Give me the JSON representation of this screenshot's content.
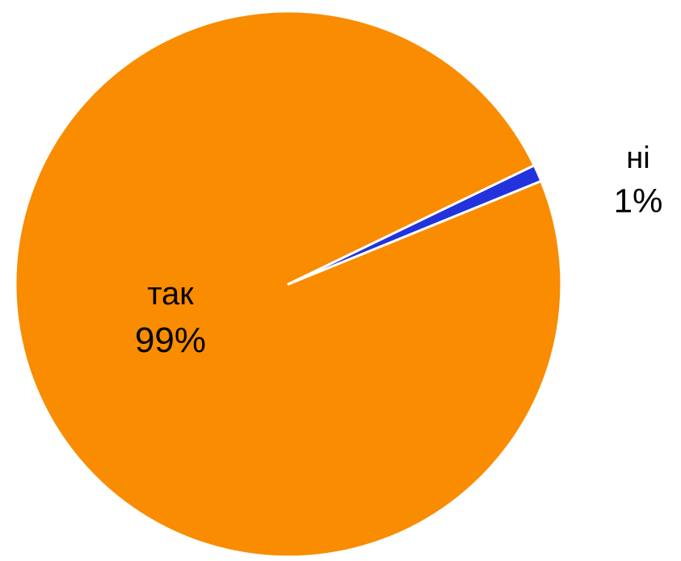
{
  "chart_data": {
    "type": "pie",
    "slices": [
      {
        "label": "так",
        "value": 99,
        "percent_label": "99%",
        "color": "#F98C00"
      },
      {
        "label": "ні",
        "value": 1,
        "percent_label": "1%",
        "color": "#2233DD"
      }
    ],
    "separator_color": "#ffffff",
    "label_color": "#000000"
  }
}
